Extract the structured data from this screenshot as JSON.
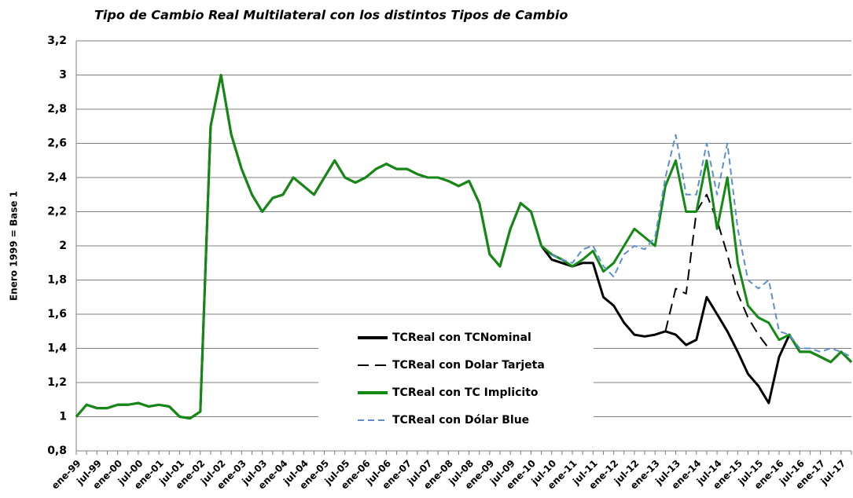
{
  "chart_data": {
    "type": "line",
    "title": "Tipo de Cambio Real Multilateral con los distintos Tipos de Cambio",
    "y_label": "Enero 1999 = Base 1",
    "categories": [
      "ene-99",
      null,
      "jul-99",
      null,
      "ene-00",
      null,
      "jul-00",
      null,
      "ene-01",
      null,
      "jul-01",
      null,
      "ene-02",
      null,
      "jul-02",
      null,
      "ene-03",
      null,
      "jul-03",
      null,
      "ene-04",
      null,
      "jul-04",
      null,
      "ene-05",
      null,
      "jul-05",
      null,
      "ene-06",
      null,
      "jul-06",
      null,
      "ene-07",
      null,
      "jul-07",
      null,
      "ene-08",
      null,
      "jul-08",
      null,
      "ene-09",
      null,
      "jul-09",
      null,
      "ene-10",
      null,
      "jul-10",
      null,
      "ene-11",
      null,
      "jul-11",
      null,
      "ene-12",
      null,
      "jul-12",
      null,
      "ene-13",
      null,
      "jul-13",
      null,
      "ene-14",
      null,
      "jul-14",
      null,
      "ene-15",
      null,
      "jul-15",
      null,
      "ene-16",
      null,
      "jul-16",
      null,
      "ene-17",
      null,
      "jul-17",
      null
    ],
    "ylim": [
      0.8,
      3.2
    ],
    "yticks": [
      {
        "value": 0.8,
        "label": "0,8"
      },
      1,
      {
        "value": 1.2,
        "label": "1,2"
      },
      {
        "value": 1.4,
        "label": "1,4"
      },
      {
        "value": 1.6,
        "label": "1,6"
      },
      {
        "value": 1.8,
        "label": "1,8"
      },
      2,
      {
        "value": 2.2,
        "label": "2,2"
      },
      {
        "value": 2.4,
        "label": "2,4"
      },
      {
        "value": 2.6,
        "label": "2,6"
      },
      {
        "value": 2.8,
        "label": "2,8"
      },
      3,
      {
        "value": 3.2,
        "label": "3,2"
      }
    ],
    "grid": true,
    "series": [
      {
        "name": "TCReal con TCNominal",
        "color": "#000000",
        "style": "solid",
        "values": [
          1.0,
          1.07,
          1.05,
          1.05,
          1.07,
          1.07,
          1.08,
          1.06,
          1.07,
          1.06,
          1.0,
          0.99,
          1.03,
          2.7,
          3.0,
          2.65,
          2.45,
          2.3,
          2.2,
          2.28,
          2.3,
          2.4,
          2.35,
          2.3,
          2.4,
          2.5,
          2.4,
          2.37,
          2.4,
          2.45,
          2.48,
          2.45,
          2.45,
          2.42,
          2.4,
          2.4,
          2.38,
          2.35,
          2.38,
          2.25,
          1.95,
          1.88,
          2.1,
          2.25,
          2.2,
          2.0,
          1.92,
          1.9,
          1.88,
          1.9,
          1.9,
          1.7,
          1.65,
          1.55,
          1.48,
          1.47,
          1.48,
          1.5,
          1.48,
          1.42,
          1.45,
          1.7,
          1.6,
          1.5,
          1.38,
          1.25,
          1.18,
          1.08,
          1.35,
          1.48,
          1.38,
          1.38,
          1.35,
          1.32,
          1.38,
          1.32
        ]
      },
      {
        "name": "TCReal con Dolar Tarjeta",
        "color": "#000000",
        "style": "dashed",
        "values": [
          null,
          null,
          null,
          null,
          null,
          null,
          null,
          null,
          null,
          null,
          null,
          null,
          null,
          null,
          null,
          null,
          null,
          null,
          null,
          null,
          null,
          null,
          null,
          null,
          null,
          null,
          null,
          null,
          null,
          null,
          null,
          null,
          null,
          null,
          null,
          null,
          null,
          null,
          null,
          null,
          null,
          null,
          null,
          null,
          null,
          null,
          null,
          null,
          null,
          null,
          null,
          null,
          null,
          null,
          null,
          null,
          null,
          1.5,
          1.75,
          1.72,
          2.2,
          2.3,
          2.15,
          1.95,
          1.72,
          1.58,
          1.48,
          1.4,
          null,
          null,
          null,
          null,
          null,
          null,
          null,
          null
        ]
      },
      {
        "name": "TCReal con TC Implicito",
        "color": "#138a13",
        "style": "solid",
        "values": [
          1.0,
          1.07,
          1.05,
          1.05,
          1.07,
          1.07,
          1.08,
          1.06,
          1.07,
          1.06,
          1.0,
          0.99,
          1.03,
          2.7,
          3.0,
          2.65,
          2.45,
          2.3,
          2.2,
          2.28,
          2.3,
          2.4,
          2.35,
          2.3,
          2.4,
          2.5,
          2.4,
          2.37,
          2.4,
          2.45,
          2.48,
          2.45,
          2.45,
          2.42,
          2.4,
          2.4,
          2.38,
          2.35,
          2.38,
          2.25,
          1.95,
          1.88,
          2.1,
          2.25,
          2.2,
          2.0,
          1.95,
          1.92,
          1.88,
          1.92,
          1.97,
          1.85,
          1.9,
          2.0,
          2.1,
          2.05,
          2.0,
          2.35,
          2.5,
          2.2,
          2.2,
          2.5,
          2.1,
          2.4,
          1.9,
          1.65,
          1.58,
          1.55,
          1.45,
          1.48,
          1.38,
          1.38,
          1.35,
          1.32,
          1.38,
          1.32
        ]
      },
      {
        "name": "TCReal con Dólar Blue",
        "color": "#5b8fd0",
        "style": "dashed",
        "values": [
          null,
          null,
          null,
          null,
          null,
          null,
          null,
          null,
          null,
          null,
          null,
          null,
          null,
          null,
          null,
          null,
          null,
          null,
          null,
          null,
          null,
          null,
          null,
          null,
          null,
          null,
          null,
          null,
          null,
          null,
          null,
          null,
          null,
          null,
          null,
          null,
          null,
          null,
          null,
          null,
          null,
          null,
          null,
          null,
          null,
          null,
          1.95,
          1.92,
          1.9,
          1.98,
          2.0,
          1.88,
          1.82,
          1.95,
          2.0,
          1.98,
          2.05,
          2.4,
          2.65,
          2.3,
          2.3,
          2.6,
          2.3,
          2.6,
          2.1,
          1.8,
          1.75,
          1.8,
          1.5,
          1.48,
          1.4,
          1.4,
          1.38,
          1.4,
          1.38,
          1.35
        ]
      }
    ]
  }
}
